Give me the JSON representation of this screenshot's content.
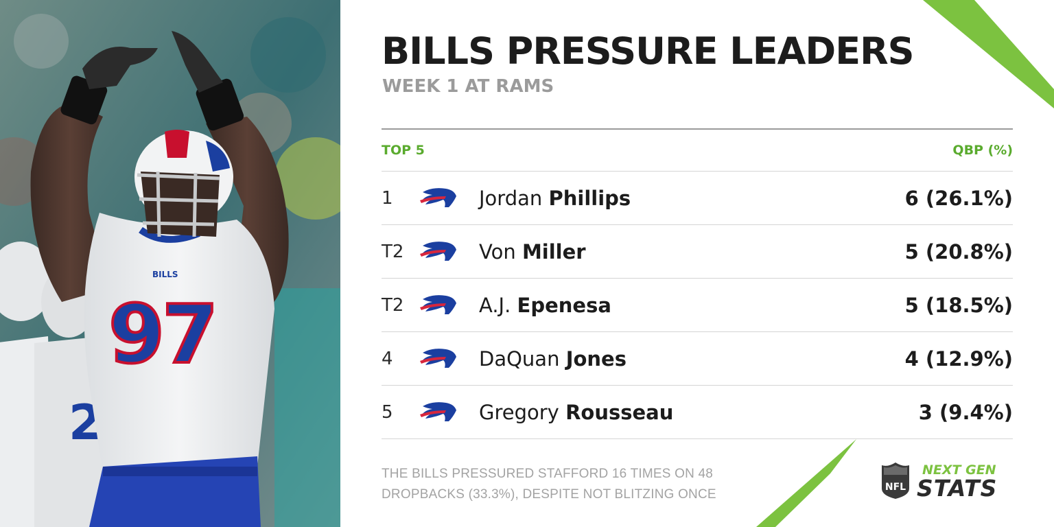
{
  "header": {
    "title": "BILLS PRESSURE LEADERS",
    "subtitle": "WEEK 1 AT RAMS"
  },
  "table": {
    "left_header": "TOP 5",
    "right_header": "QBP (%)",
    "rows": [
      {
        "rank": "1",
        "first": "Jordan",
        "last": "Phillips",
        "value": "6 (26.1%)"
      },
      {
        "rank": "T2",
        "first": "Von",
        "last": "Miller",
        "value": "5 (20.8%)"
      },
      {
        "rank": "T2",
        "first": "A.J.",
        "last": "Epenesa",
        "value": "5 (18.5%)"
      },
      {
        "rank": "4",
        "first": "DaQuan",
        "last": "Jones",
        "value": "4 (12.9%)"
      },
      {
        "rank": "5",
        "first": "Gregory",
        "last": "Rousseau",
        "value": "3 (9.4%)"
      }
    ]
  },
  "footnote": {
    "line1": "THE BILLS PRESSURED STAFFORD 16 TIMES ON 48",
    "line2": "DROPBACKS (33.3%), DESPITE NOT BLITZING ONCE"
  },
  "brand": {
    "top": "NEXT GEN",
    "bottom": "STATS",
    "nfl_shield": "NFL"
  },
  "photo": {
    "jersey_number": "97",
    "jersey_text": "BILLS"
  },
  "icons": {
    "team_logo": "bills-logo-icon",
    "league_logo": "nfl-shield-icon"
  },
  "colors": {
    "accent_green": "#7cc240",
    "header_green": "#5aab2e",
    "bills_blue": "#1b3fa0",
    "bills_red": "#d7263d",
    "title_dark": "#1c1c1c",
    "subtitle_gray": "#9b9b9b"
  }
}
